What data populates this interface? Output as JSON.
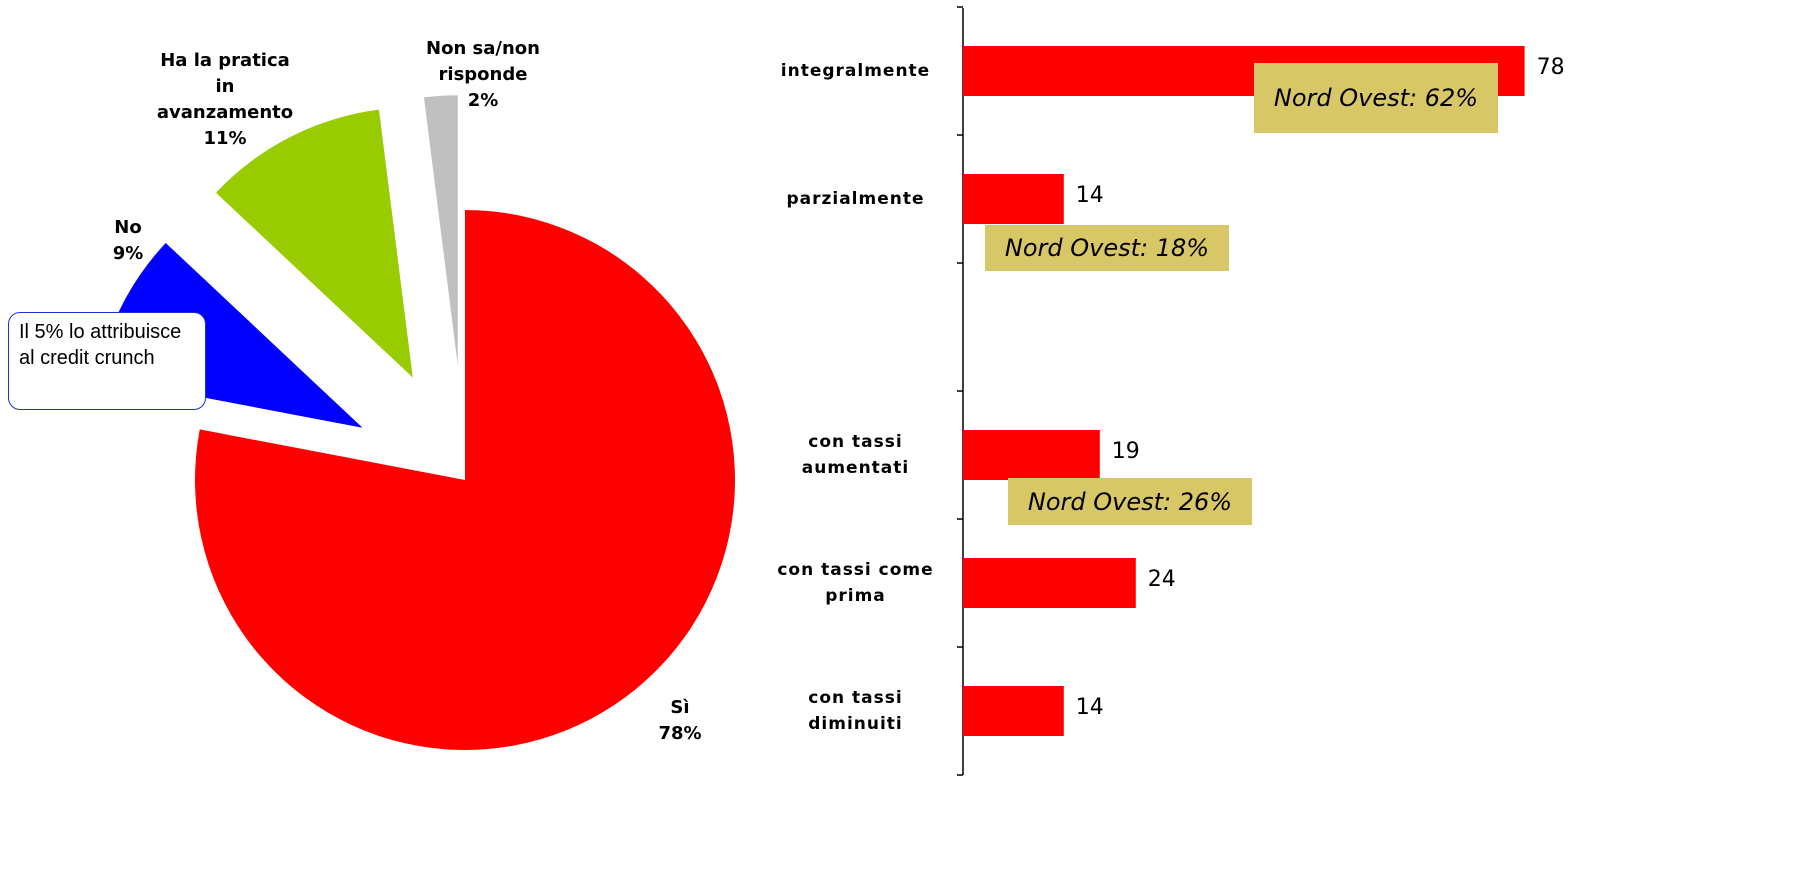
{
  "chart_data": [
    {
      "type": "pie",
      "categories": [
        "Sì",
        "No",
        "Ha la pratica in avanzamento",
        "Non sa/non risponde"
      ],
      "values": [
        78,
        9,
        11,
        2
      ],
      "value_labels": [
        "78%",
        "9%",
        "11%",
        "2%"
      ],
      "colors": [
        "#ff0000",
        "#0000ff",
        "#99cc00",
        "#c0c0c0"
      ],
      "annotation": "Il 5% lo attribuisce al credit crunch"
    },
    {
      "type": "hbar",
      "categories": [
        "integralmente",
        "parzialmente",
        null,
        "con tassi aumentati",
        "con tassi come prima",
        "con tassi diminuiti"
      ],
      "values": [
        78,
        14,
        null,
        19,
        24,
        14
      ],
      "color": "#ff0000",
      "xlim": [
        0,
        80
      ],
      "annotations": [
        "Nord Ovest: 62%",
        "Nord Ovest: 18%",
        "Nord Ovest: 26%"
      ]
    }
  ]
}
